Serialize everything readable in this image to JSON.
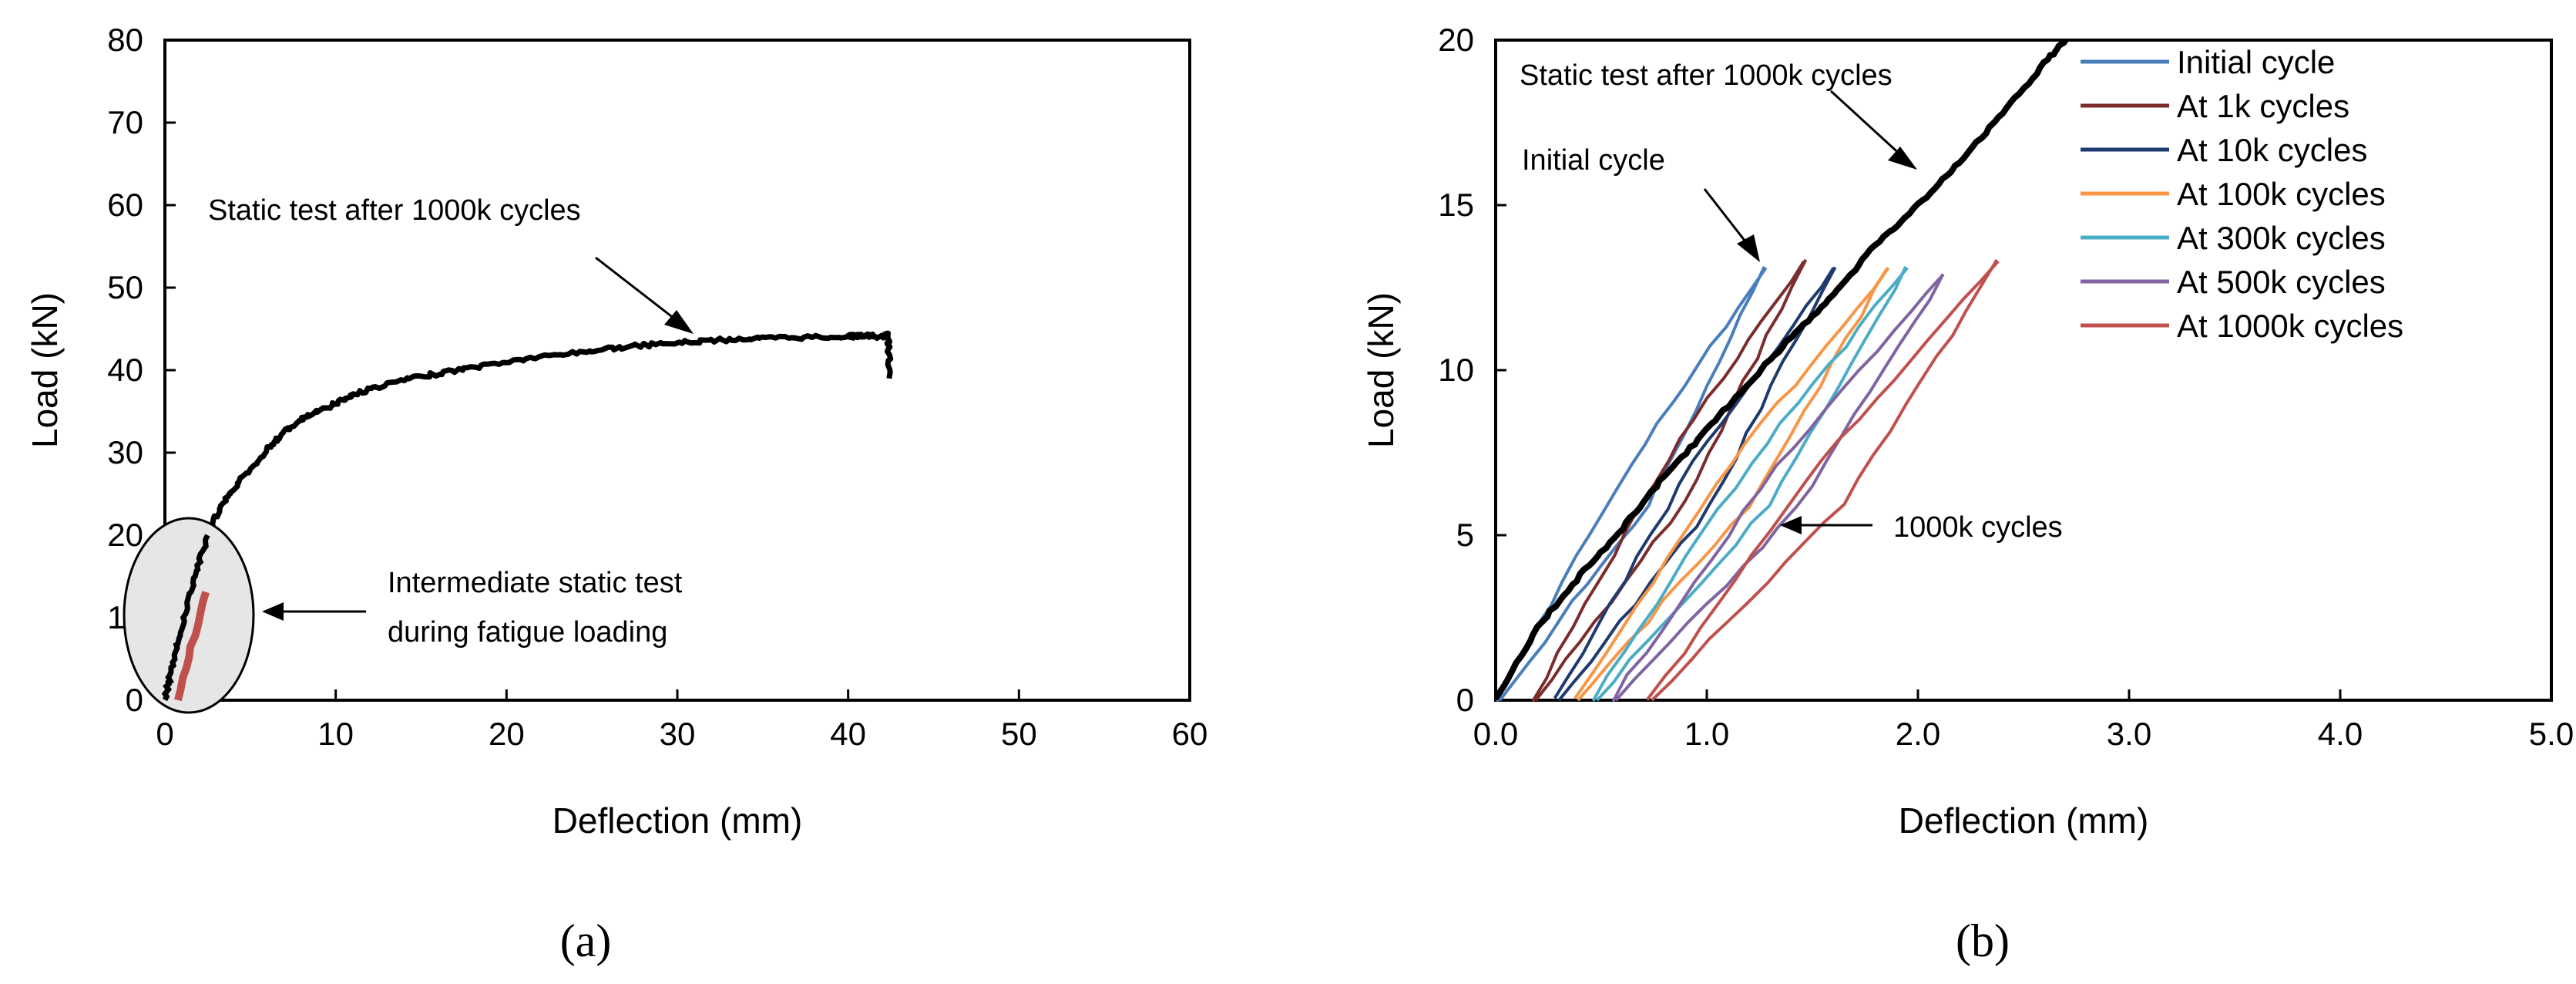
{
  "chart_data": [
    {
      "id": "a",
      "type": "line",
      "panel_label": "(a)",
      "xlabel": "Deflection (mm)",
      "ylabel": "Load (kN)",
      "xlim": [
        0,
        60
      ],
      "ylim": [
        0,
        80
      ],
      "xticks": [
        "0",
        "10",
        "20",
        "30",
        "40",
        "50",
        "60"
      ],
      "yticks": [
        "0",
        "10",
        "20",
        "30",
        "40",
        "50",
        "60",
        "70",
        "80"
      ],
      "grid": false,
      "series": [
        {
          "name": "Static test after 1000k cycles",
          "color": "#000000",
          "x": [
            0,
            0.3,
            0.8,
            1.3,
            1.9,
            2.5,
            3.2,
            4.0,
            5.0,
            6.0,
            7.0,
            8.0,
            9.0,
            10.0,
            11.0,
            12.0,
            14.0,
            16.0,
            18.0,
            20.0,
            22.0,
            24.0,
            26.0,
            28.0,
            30.0,
            32.0,
            34.0,
            36.0,
            38.0,
            40.0,
            41.0,
            42.0,
            42.3,
            42.4,
            42.4
          ],
          "y": [
            0,
            3,
            7,
            11.5,
            16,
            20,
            23,
            25.5,
            28,
            30.5,
            32.5,
            34,
            35,
            36,
            37,
            37.7,
            38.8,
            39.6,
            40.3,
            41,
            41.6,
            42.1,
            42.6,
            43,
            43.3,
            43.6,
            43.8,
            43.9,
            44,
            44.1,
            44.2,
            44,
            44.3,
            43,
            39
          ]
        },
        {
          "name": "Intermediate static test during fatigue loading",
          "color": "#c0504d",
          "x": [
            0.7,
            2.4
          ],
          "y": [
            0,
            13.1
          ]
        }
      ],
      "annotations": [
        {
          "text": "Static test after 1000k cycles",
          "x": 31,
          "y": 45
        },
        {
          "text_lines": [
            "Intermediate static test",
            "during fatigue loading"
          ],
          "x": 5.5,
          "y": 11
        }
      ]
    },
    {
      "id": "b",
      "type": "line",
      "panel_label": "(b)",
      "xlabel": "Deflection (mm)",
      "ylabel": "Load (kN)",
      "xlim": [
        0,
        5
      ],
      "ylim": [
        0,
        20
      ],
      "xticks": [
        "0.0",
        "1.0",
        "2.0",
        "3.0",
        "4.0",
        "5.0"
      ],
      "yticks": [
        "0",
        "5",
        "10",
        "15",
        "20"
      ],
      "grid": false,
      "legend_position": "top-right",
      "series": [
        {
          "name": "Initial cycle",
          "color": "#4a7ebb",
          "x0": 0.0,
          "x1": 1.28,
          "ypeak": 13.1
        },
        {
          "name": "At 1k cycles",
          "color": "#7b2c2c",
          "x0": 0.17,
          "x1": 1.46,
          "ypeak": 13.3
        },
        {
          "name": "At 10k cycles",
          "color": "#1f3a6e",
          "x0": 0.28,
          "x1": 1.6,
          "ypeak": 13.1
        },
        {
          "name": "At 100k cycles",
          "color": "#f79646",
          "x0": 0.37,
          "x1": 1.86,
          "ypeak": 13.1
        },
        {
          "name": "At 300k cycles",
          "color": "#4bacc6",
          "x0": 0.46,
          "x1": 1.95,
          "ypeak": 13.1
        },
        {
          "name": "At 500k cycles",
          "color": "#8064a2",
          "x0": 0.55,
          "x1": 2.12,
          "ypeak": 12.9
        },
        {
          "name": "At 1000k cycles",
          "color": "#c0504d",
          "x0": 0.72,
          "x1": 2.38,
          "ypeak": 13.3
        },
        {
          "name": "Static test after 1000k cycles",
          "color": "#000000",
          "in_legend": false,
          "x": [
            0,
            0.2,
            0.4,
            0.6,
            0.8,
            1.0,
            1.2,
            1.4,
            1.6,
            1.8,
            2.0,
            2.2,
            2.4,
            2.6,
            2.7
          ],
          "y": [
            0,
            2.2,
            3.8,
            5.2,
            6.8,
            8.2,
            9.6,
            11.0,
            12.3,
            13.8,
            15.0,
            16.3,
            17.8,
            19.3,
            20.0
          ]
        }
      ],
      "annotations": [
        {
          "text": "Static test after 1000k cycles",
          "x": 0.1,
          "y": 18.9
        },
        {
          "text": "Initial cycle",
          "x": 0.1,
          "y": 16.3
        },
        {
          "text": "1000k cycles",
          "x": 1.9,
          "y": 5.2
        }
      ]
    }
  ]
}
